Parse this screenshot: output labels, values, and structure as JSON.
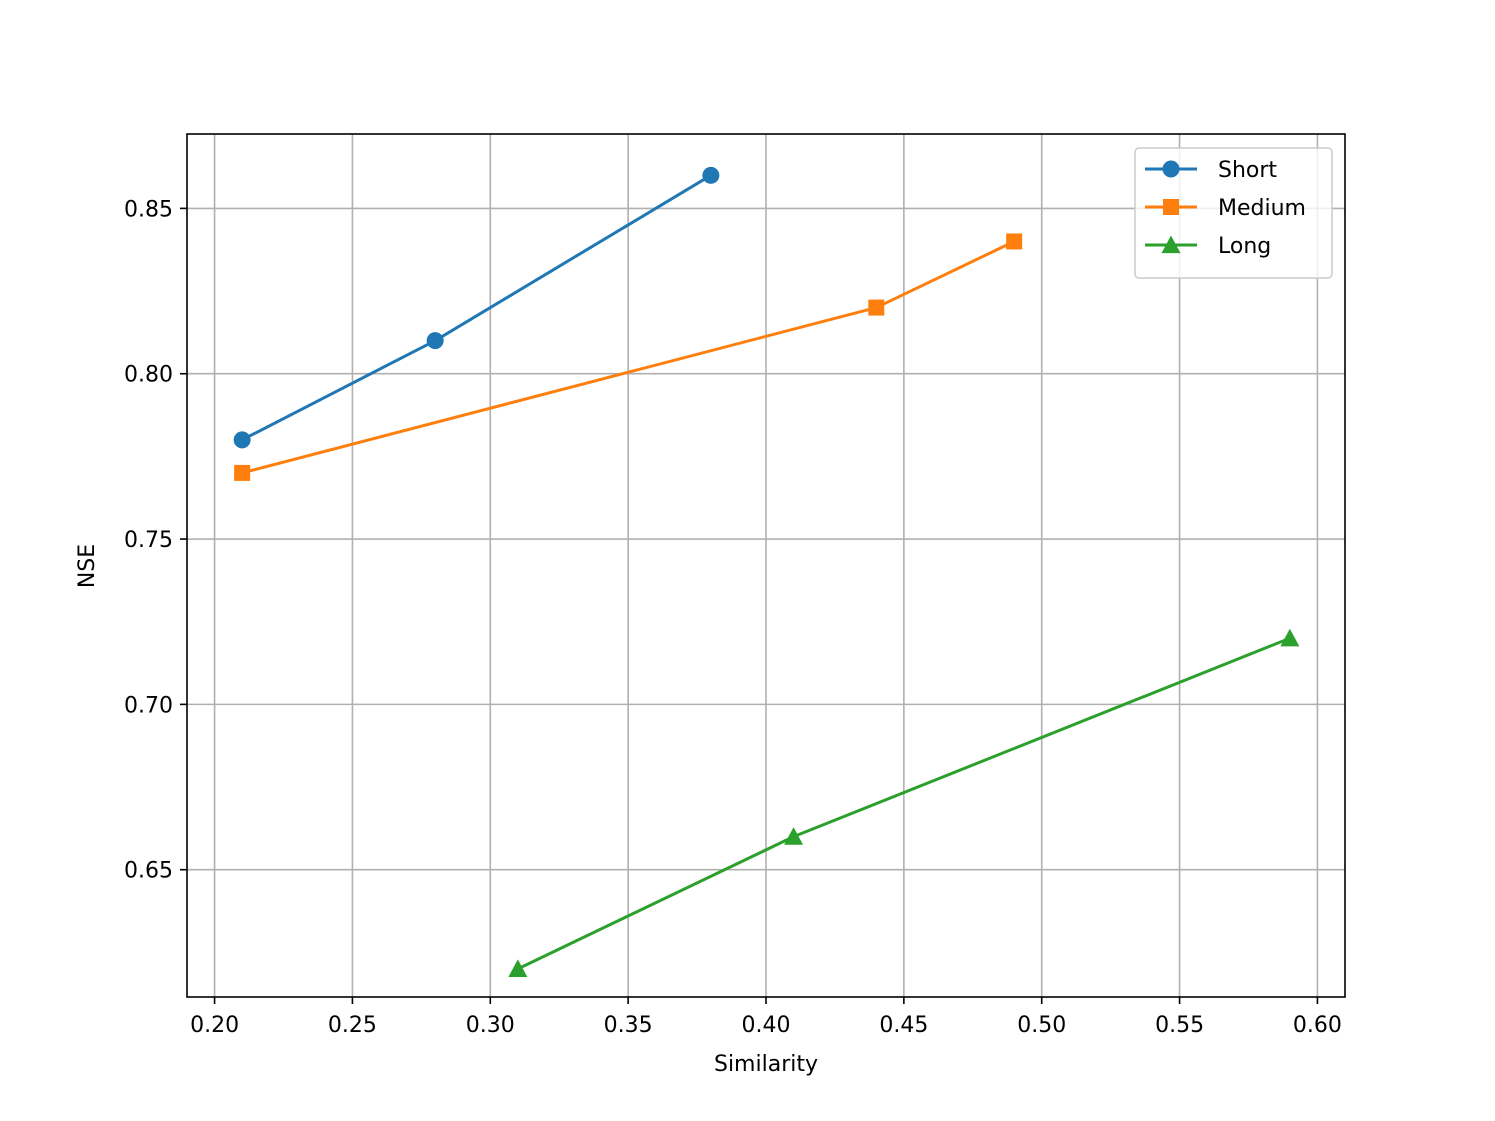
{
  "chart_data": {
    "type": "line",
    "title": "",
    "xlabel": "Similarity",
    "ylabel": "NSE",
    "xlim": [
      0.19,
      0.61
    ],
    "ylim": [
      0.6115,
      0.8725
    ],
    "xticks": [
      0.2,
      0.25,
      0.3,
      0.35,
      0.4,
      0.45,
      0.5,
      0.55,
      0.6
    ],
    "xtick_labels": [
      "0.20",
      "0.25",
      "0.30",
      "0.35",
      "0.40",
      "0.45",
      "0.50",
      "0.55",
      "0.60"
    ],
    "yticks": [
      0.65,
      0.7,
      0.75,
      0.8,
      0.85
    ],
    "ytick_labels": [
      "0.65",
      "0.70",
      "0.75",
      "0.80",
      "0.85"
    ],
    "grid": true,
    "legend_position": "top-right",
    "series": [
      {
        "name": "Short",
        "color": "#1f77b4",
        "marker": "circle",
        "x": [
          0.21,
          0.28,
          0.38
        ],
        "y": [
          0.78,
          0.81,
          0.86
        ]
      },
      {
        "name": "Medium",
        "color": "#ff7f0e",
        "marker": "square",
        "x": [
          0.21,
          0.44,
          0.49
        ],
        "y": [
          0.77,
          0.82,
          0.84
        ]
      },
      {
        "name": "Long",
        "color": "#2ca02c",
        "marker": "triangle",
        "x": [
          0.31,
          0.41,
          0.59
        ],
        "y": [
          0.62,
          0.66,
          0.72
        ]
      }
    ]
  }
}
